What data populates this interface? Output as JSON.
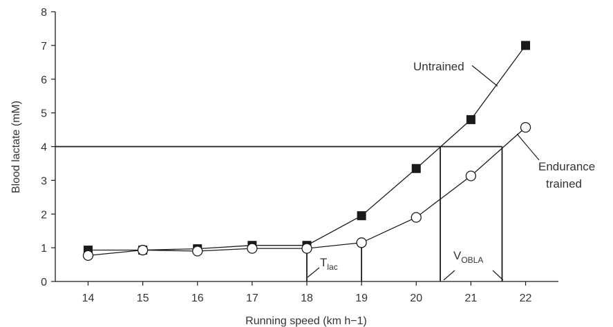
{
  "chart_data": {
    "type": "line",
    "xlabel": "Running speed (km h−1)",
    "ylabel": "Blood lactate (mM)",
    "x": [
      14,
      15,
      16,
      17,
      18,
      19,
      20,
      21,
      22
    ],
    "xlim": [
      13.4,
      22.6
    ],
    "ylim": [
      0,
      8
    ],
    "x_ticks": [
      "14",
      "15",
      "16",
      "17",
      "18",
      "19",
      "20",
      "21",
      "22"
    ],
    "y_ticks": [
      "0",
      "1",
      "2",
      "3",
      "4",
      "5",
      "6",
      "7",
      "8"
    ],
    "series": [
      {
        "name": "Untrained",
        "marker": "filled-square",
        "values": [
          0.93,
          0.93,
          0.97,
          1.07,
          1.07,
          1.95,
          3.35,
          4.8,
          7.0
        ]
      },
      {
        "name": "Endurance trained",
        "marker": "open-circle",
        "values": [
          0.77,
          0.93,
          0.9,
          0.98,
          0.98,
          1.15,
          1.9,
          3.13,
          4.57
        ]
      }
    ],
    "threshold_line": {
      "y": 4,
      "x_from": 13.4,
      "x_to": 21.57
    },
    "verticals": [
      {
        "x": 18,
        "y_top": 1.07
      },
      {
        "x": 19,
        "y_top": 1.15
      },
      {
        "x": 20.44,
        "y_top": 4
      },
      {
        "x": 21.57,
        "y_top": 4
      }
    ],
    "annotations": {
      "untrained": "Untrained",
      "endurance_line1": "Endurance",
      "endurance_line2": "trained",
      "tlac_main": "T",
      "tlac_sub": "lac",
      "vobla_main": "V",
      "vobla_sub": "OBLA"
    },
    "colors": {
      "ink": "#1a1a1a",
      "text": "#333333"
    }
  }
}
